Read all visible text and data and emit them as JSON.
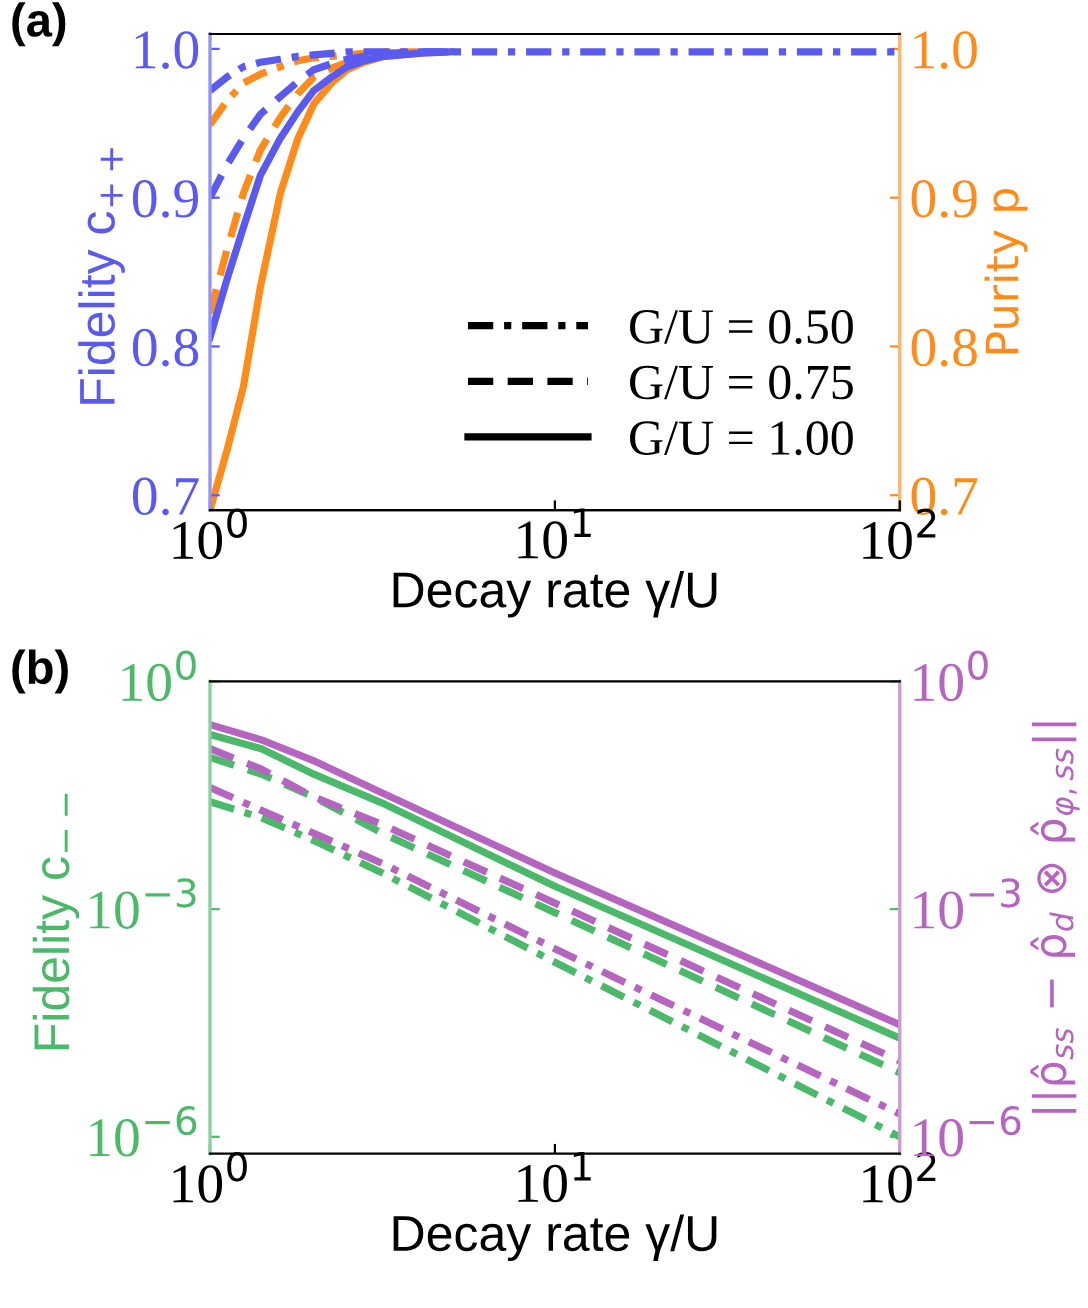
{
  "chart_data": [
    {
      "type": "line",
      "title": "(a)",
      "xlabel": "Decay rate γ/U",
      "ylabel": "Fidelity c$_{++}$",
      "y2label": "Purity p",
      "log": "x",
      "grid": false,
      "annotations": [
        "G/U = 0.50",
        "G/U = 0.75",
        "G/U = 1.00"
      ],
      "x": [
        1,
        1.12,
        1.25,
        1.4,
        1.6,
        1.8,
        2,
        2.25,
        2.5,
        2.8,
        3.2,
        4,
        5,
        7,
        10,
        100
      ],
      "xlim": [
        1,
        100
      ],
      "xticks": [
        {
          "value": 1,
          "label": "10$^{0}$"
        },
        {
          "value": 10,
          "label": "10$^{1}$"
        },
        {
          "value": 100,
          "label": "10$^{2}$"
        }
      ],
      "ylim": [
        0.69,
        1.01
      ],
      "yticks": [
        0.7,
        0.8,
        0.9,
        {
          "value": 1,
          "label": "1.0"
        }
      ],
      "y2lim": [
        0.69,
        1.01
      ],
      "y2ticks": [
        0.7,
        0.8,
        0.9,
        {
          "value": 1,
          "label": "1.0"
        }
      ],
      "series": [
        {
          "color": "#5a5af0",
          "line_style": "dashdot",
          "values": [
            0.972,
            0.981,
            0.988,
            0.991,
            0.993,
            0.995,
            0.996,
            0.997,
            0.998,
            0.998,
            0.998,
            0.998,
            0.998,
            0.998,
            0.998,
            0.998
          ]
        },
        {
          "color": "#5a5af0",
          "line_style": "dashed",
          "values": [
            0.9,
            0.922,
            0.94,
            0.956,
            0.968,
            0.978,
            0.986,
            0.99,
            0.993,
            0.995,
            0.997,
            0.998,
            0.998,
            null,
            null,
            null
          ]
        },
        {
          "color": "#5a5af0",
          "line_style": "solid",
          "values": [
            0.806,
            0.845,
            0.88,
            0.915,
            0.94,
            0.958,
            0.972,
            0.981,
            0.988,
            0.992,
            0.995,
            0.997,
            0.998,
            null,
            null,
            null
          ]
        },
        {
          "color": "#ff8c1a",
          "line_style": "dashdot",
          "axis": "y2",
          "values": [
            0.949,
            0.965,
            0.977,
            0.983,
            0.988,
            0.992,
            0.994,
            0.995,
            0.996,
            0.997,
            0.998,
            0.998,
            null,
            null,
            null,
            null
          ]
        },
        {
          "color": "#ff8c1a",
          "line_style": "dashed",
          "axis": "y2",
          "values": [
            0.822,
            0.865,
            0.903,
            0.932,
            0.954,
            0.97,
            0.981,
            0.987,
            0.991,
            0.994,
            0.996,
            0.997,
            null,
            null,
            null,
            null
          ]
        },
        {
          "color": "#ff8c1a",
          "line_style": "solid",
          "axis": "y2",
          "values": [
            0.69,
            0.73,
            0.773,
            0.84,
            0.903,
            0.94,
            0.963,
            0.977,
            0.986,
            0.991,
            0.995,
            0.997,
            null,
            null,
            null,
            null
          ]
        }
      ]
    },
    {
      "type": "line",
      "title": "(b)",
      "xlabel": "Decay rate γ/U",
      "ylabel": "Fidelity c$_{−−}$",
      "y2label": "||ρ̂$_{ss}$ − ρ̂$_{d}$ ⊗ ρ̂$_{φ,ss}$||",
      "log": "xy",
      "grid": false,
      "x": [
        1,
        1.41,
        2,
        3.16,
        10,
        100
      ],
      "xlim": [
        1,
        100
      ],
      "xticks": [
        {
          "value": 1,
          "label": "10$^{0}$"
        },
        {
          "value": 10,
          "label": "10$^{1}$"
        },
        {
          "value": 100,
          "label": "10$^{2}$"
        }
      ],
      "ylim": [
        6e-07,
        1
      ],
      "yticks": [
        {
          "value": 1e-06,
          "label": "10$^{−6}$"
        },
        {
          "value": 0.001,
          "label": "10$^{−3}$"
        },
        {
          "value": 1,
          "label": "10$^{0}$"
        }
      ],
      "series": [
        {
          "color": "#4cb86a",
          "line_style": "dashdot",
          "values": [
            0.026,
            0.016,
            0.008,
            0.003,
            0.0002,
            1e-06
          ]
        },
        {
          "color": "#4cb86a",
          "line_style": "dashed",
          "values": [
            0.1,
            0.06,
            0.03,
            0.01,
            0.0009,
            7e-06
          ]
        },
        {
          "color": "#4cb86a",
          "line_style": "solid",
          "values": [
            0.2,
            0.13,
            0.06,
            0.025,
            0.002,
            2e-05
          ]
        },
        {
          "color": "#b565c0",
          "line_style": "dashdot",
          "values": [
            0.04,
            0.02,
            0.01,
            0.004,
            0.0003,
            2e-06
          ]
        },
        {
          "color": "#b565c0",
          "line_style": "dashed",
          "values": [
            0.13,
            0.07,
            0.03,
            0.013,
            0.0012,
            1e-05
          ]
        },
        {
          "color": "#b565c0",
          "line_style": "solid",
          "values": [
            0.27,
            0.17,
            0.09,
            0.034,
            0.003,
            3e-05
          ]
        }
      ]
    }
  ]
}
